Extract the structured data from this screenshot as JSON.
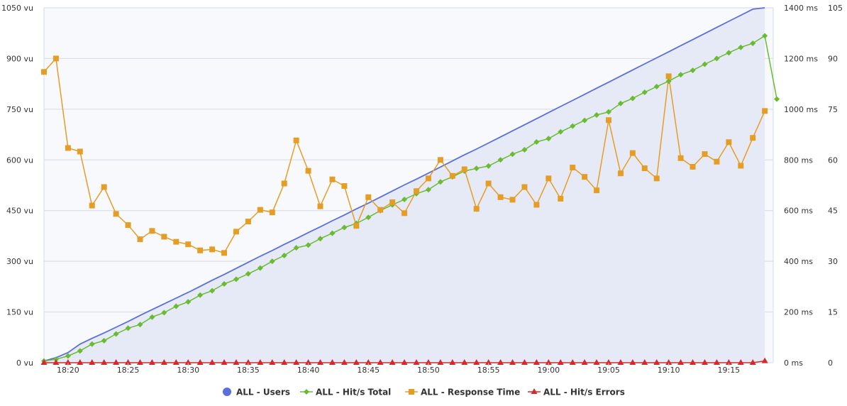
{
  "chart_data": {
    "type": "line",
    "x_ticks": [
      "18:20",
      "18:25",
      "18:30",
      "18:35",
      "18:40",
      "18:45",
      "18:50",
      "18:55",
      "19:00",
      "19:05",
      "19:10",
      "19:15"
    ],
    "y_left": {
      "ticks": [
        "0 vu",
        "150 vu",
        "300 vu",
        "450 vu",
        "600 vu",
        "750 vu",
        "900 vu",
        "1050 vu"
      ],
      "range": [
        0,
        1050
      ],
      "unit": "vu"
    },
    "y_right_ms": {
      "ticks": [
        "0 ms",
        "200 ms",
        "400 ms",
        "600 ms",
        "800 ms",
        "1000 ms",
        "1200 ms",
        "1400 ms"
      ],
      "range": [
        0,
        1400
      ],
      "unit": "ms"
    },
    "y_right_count": {
      "ticks": [
        "0",
        "15",
        "30",
        "45",
        "60",
        "75",
        "90",
        "105"
      ],
      "range": [
        0,
        105
      ]
    },
    "grid": true,
    "legend_position": "bottom",
    "x_range_minutes": [
      0,
      60
    ],
    "x_start_time": "18:18",
    "series": [
      {
        "name": "ALL - Users",
        "axis": "left",
        "color": "#5b6fd9",
        "area_color": "#e6e9f6",
        "marker": "circle",
        "points": [
          [
            0,
            5
          ],
          [
            1,
            15
          ],
          [
            2,
            30
          ],
          [
            3,
            55
          ],
          [
            4,
            72
          ],
          [
            5,
            88
          ],
          [
            6,
            105
          ],
          [
            7,
            122
          ],
          [
            8,
            140
          ],
          [
            9,
            157
          ],
          [
            10,
            174
          ],
          [
            11,
            191
          ],
          [
            12,
            208
          ],
          [
            13,
            226
          ],
          [
            14,
            244
          ],
          [
            15,
            261
          ],
          [
            16,
            279
          ],
          [
            17,
            297
          ],
          [
            18,
            315
          ],
          [
            19,
            332
          ],
          [
            20,
            350
          ],
          [
            21,
            367
          ],
          [
            22,
            385
          ],
          [
            23,
            402
          ],
          [
            24,
            420
          ],
          [
            25,
            437
          ],
          [
            26,
            455
          ],
          [
            27,
            472
          ],
          [
            28,
            490
          ],
          [
            29,
            508
          ],
          [
            30,
            526
          ],
          [
            31,
            543
          ],
          [
            32,
            561
          ],
          [
            33,
            579
          ],
          [
            34,
            597
          ],
          [
            35,
            615
          ],
          [
            36,
            632
          ],
          [
            37,
            650
          ],
          [
            38,
            668
          ],
          [
            39,
            686
          ],
          [
            40,
            704
          ],
          [
            41,
            722
          ],
          [
            42,
            740
          ],
          [
            43,
            758
          ],
          [
            44,
            776
          ],
          [
            45,
            794
          ],
          [
            46,
            812
          ],
          [
            47,
            830
          ],
          [
            48,
            848
          ],
          [
            49,
            866
          ],
          [
            50,
            884
          ],
          [
            51,
            902
          ],
          [
            52,
            920
          ],
          [
            53,
            938
          ],
          [
            54,
            956
          ],
          [
            55,
            974
          ],
          [
            56,
            992
          ],
          [
            57,
            1010
          ],
          [
            58,
            1028
          ],
          [
            59,
            1046
          ],
          [
            60,
            1050
          ]
        ]
      },
      {
        "name": "ALL - Hit/s Total",
        "axis": "right_count",
        "color": "#6abb31",
        "marker": "diamond",
        "points": [
          [
            0,
            0.5
          ],
          [
            1,
            1.0
          ],
          [
            2,
            2.0
          ],
          [
            3,
            3.5
          ],
          [
            4,
            5.5
          ],
          [
            5,
            6.5
          ],
          [
            6,
            8.5
          ],
          [
            7,
            10.2
          ],
          [
            8,
            11.3
          ],
          [
            9,
            13.5
          ],
          [
            10,
            14.8
          ],
          [
            11,
            16.7
          ],
          [
            12,
            18.0
          ],
          [
            13,
            20.0
          ],
          [
            14,
            21.3
          ],
          [
            15,
            23.3
          ],
          [
            16,
            24.7
          ],
          [
            17,
            26.3
          ],
          [
            18,
            28.0
          ],
          [
            19,
            30.0
          ],
          [
            20,
            31.7
          ],
          [
            21,
            34.0
          ],
          [
            22,
            34.8
          ],
          [
            23,
            36.7
          ],
          [
            24,
            38.3
          ],
          [
            25,
            40.0
          ],
          [
            26,
            41.2
          ],
          [
            27,
            43.0
          ],
          [
            28,
            45.0
          ],
          [
            29,
            46.7
          ],
          [
            30,
            48.3
          ],
          [
            31,
            50.0
          ],
          [
            32,
            51.2
          ],
          [
            33,
            53.5
          ],
          [
            34,
            55.0
          ],
          [
            35,
            56.7
          ],
          [
            36,
            57.5
          ],
          [
            37,
            58.2
          ],
          [
            38,
            60.0
          ],
          [
            39,
            61.7
          ],
          [
            40,
            63.0
          ],
          [
            41,
            65.3
          ],
          [
            42,
            66.3
          ],
          [
            43,
            68.3
          ],
          [
            44,
            70.0
          ],
          [
            45,
            71.7
          ],
          [
            46,
            73.3
          ],
          [
            47,
            74.2
          ],
          [
            48,
            76.7
          ],
          [
            49,
            78.2
          ],
          [
            50,
            80.0
          ],
          [
            51,
            81.7
          ],
          [
            52,
            83.3
          ],
          [
            53,
            85.2
          ],
          [
            54,
            86.5
          ],
          [
            55,
            88.3
          ],
          [
            56,
            90.0
          ],
          [
            57,
            91.7
          ],
          [
            58,
            93.3
          ],
          [
            59,
            94.5
          ],
          [
            60,
            96.7
          ],
          [
            61,
            78.0
          ]
        ]
      },
      {
        "name": "ALL - Response Time",
        "axis": "right_ms",
        "color": "#e59e25",
        "marker": "square",
        "points": [
          [
            0,
            1147
          ],
          [
            1,
            1200
          ],
          [
            2,
            847
          ],
          [
            3,
            833
          ],
          [
            4,
            620
          ],
          [
            5,
            693
          ],
          [
            6,
            587
          ],
          [
            7,
            543
          ],
          [
            8,
            487
          ],
          [
            9,
            520
          ],
          [
            10,
            497
          ],
          [
            11,
            477
          ],
          [
            12,
            467
          ],
          [
            13,
            443
          ],
          [
            14,
            447
          ],
          [
            15,
            433
          ],
          [
            16,
            517
          ],
          [
            17,
            557
          ],
          [
            18,
            603
          ],
          [
            19,
            593
          ],
          [
            20,
            707
          ],
          [
            21,
            877
          ],
          [
            22,
            757
          ],
          [
            23,
            617
          ],
          [
            24,
            723
          ],
          [
            25,
            697
          ],
          [
            26,
            540
          ],
          [
            27,
            653
          ],
          [
            28,
            603
          ],
          [
            29,
            633
          ],
          [
            30,
            590
          ],
          [
            31,
            677
          ],
          [
            32,
            727
          ],
          [
            33,
            800
          ],
          [
            34,
            737
          ],
          [
            35,
            763
          ],
          [
            36,
            607
          ],
          [
            37,
            707
          ],
          [
            38,
            653
          ],
          [
            39,
            643
          ],
          [
            40,
            693
          ],
          [
            41,
            623
          ],
          [
            42,
            727
          ],
          [
            43,
            647
          ],
          [
            44,
            770
          ],
          [
            45,
            733
          ],
          [
            46,
            680
          ],
          [
            47,
            957
          ],
          [
            48,
            747
          ],
          [
            49,
            827
          ],
          [
            50,
            767
          ],
          [
            51,
            727
          ],
          [
            52,
            1130
          ],
          [
            53,
            807
          ],
          [
            54,
            773
          ],
          [
            55,
            823
          ],
          [
            56,
            793
          ],
          [
            57,
            870
          ],
          [
            58,
            777
          ],
          [
            59,
            887
          ],
          [
            60,
            993
          ]
        ]
      },
      {
        "name": "ALL - Hit/s Errors",
        "axis": "right_count",
        "color": "#d42a2a",
        "marker": "triangle",
        "points": [
          [
            0,
            0
          ],
          [
            1,
            0
          ],
          [
            2,
            0
          ],
          [
            3,
            0
          ],
          [
            4,
            0
          ],
          [
            5,
            0
          ],
          [
            6,
            0
          ],
          [
            7,
            0
          ],
          [
            8,
            0
          ],
          [
            9,
            0
          ],
          [
            10,
            0
          ],
          [
            11,
            0
          ],
          [
            12,
            0
          ],
          [
            13,
            0
          ],
          [
            14,
            0
          ],
          [
            15,
            0
          ],
          [
            16,
            0
          ],
          [
            17,
            0
          ],
          [
            18,
            0
          ],
          [
            19,
            0
          ],
          [
            20,
            0
          ],
          [
            21,
            0
          ],
          [
            22,
            0
          ],
          [
            23,
            0
          ],
          [
            24,
            0
          ],
          [
            25,
            0
          ],
          [
            26,
            0
          ],
          [
            27,
            0
          ],
          [
            28,
            0
          ],
          [
            29,
            0
          ],
          [
            30,
            0
          ],
          [
            31,
            0
          ],
          [
            32,
            0
          ],
          [
            33,
            0
          ],
          [
            34,
            0
          ],
          [
            35,
            0
          ],
          [
            36,
            0
          ],
          [
            37,
            0
          ],
          [
            38,
            0
          ],
          [
            39,
            0
          ],
          [
            40,
            0
          ],
          [
            41,
            0
          ],
          [
            42,
            0
          ],
          [
            43,
            0
          ],
          [
            44,
            0
          ],
          [
            45,
            0
          ],
          [
            46,
            0
          ],
          [
            47,
            0
          ],
          [
            48,
            0
          ],
          [
            49,
            0
          ],
          [
            50,
            0
          ],
          [
            51,
            0
          ],
          [
            52,
            0
          ],
          [
            53,
            0
          ],
          [
            54,
            0
          ],
          [
            55,
            0
          ],
          [
            56,
            0
          ],
          [
            57,
            0
          ],
          [
            58,
            0
          ],
          [
            59,
            0
          ],
          [
            60,
            0.5
          ]
        ]
      }
    ]
  }
}
